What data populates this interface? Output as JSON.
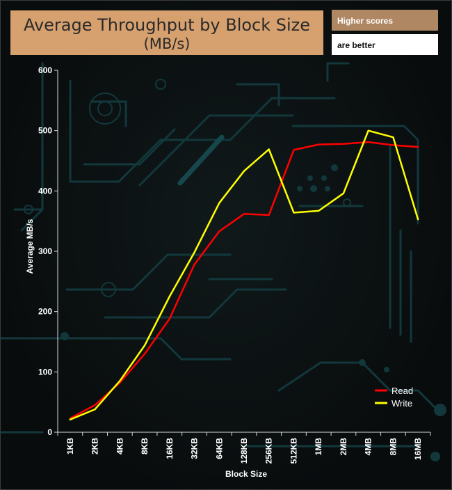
{
  "header": {
    "title_line1": "Average Throughput by Block Size",
    "title_line2": "(MB/s)",
    "note_line1": "Higher scores",
    "note_line2": "are better"
  },
  "colors": {
    "title_bg": "#d7a06f",
    "note_bg": "#b08763",
    "read": "#ff0000",
    "write": "#ffff00",
    "circuit": "#12383c"
  },
  "chart_data": {
    "type": "line",
    "title": "Average Throughput by Block Size (MB/s)",
    "xlabel": "Block Size",
    "ylabel": "Average MB/s",
    "ylim": [
      0,
      600
    ],
    "yticks": [
      0,
      100,
      200,
      300,
      400,
      500,
      600
    ],
    "categories": [
      "1KB",
      "2KB",
      "4KB",
      "8KB",
      "16KB",
      "32KB",
      "64KB",
      "128KB",
      "256KB",
      "512KB",
      "1MB",
      "2MB",
      "4MB",
      "8MB",
      "16MB"
    ],
    "series": [
      {
        "name": "Read",
        "color": "#ff0000",
        "values": [
          23,
          45,
          82,
          130,
          188,
          278,
          333,
          362,
          360,
          468,
          477,
          478,
          481,
          476,
          473
        ]
      },
      {
        "name": "Write",
        "color": "#ffff00",
        "values": [
          21,
          38,
          85,
          144,
          225,
          298,
          380,
          433,
          469,
          364,
          367,
          396,
          500,
          489,
          353
        ]
      }
    ],
    "legend_position": "bottom-right",
    "grid": false
  }
}
